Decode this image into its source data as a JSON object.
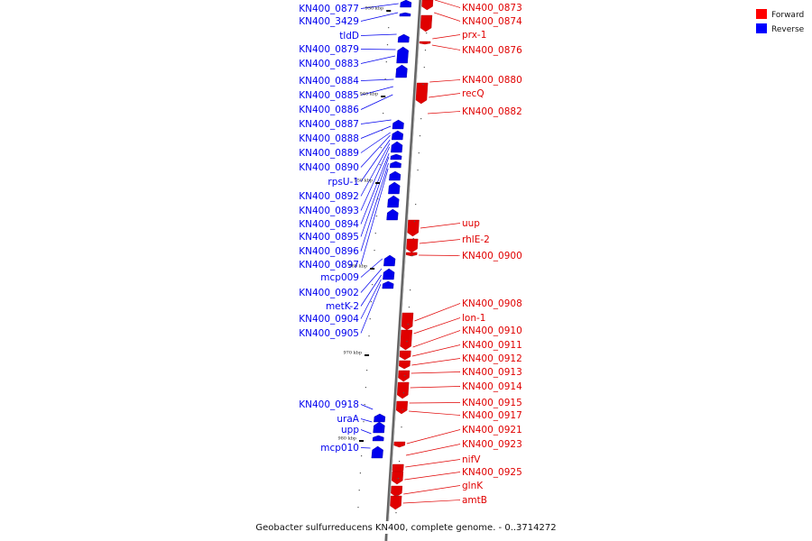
{
  "caption": "Geobacter sulfurreducens KN400, complete genome. - 0..3714272",
  "legend": [
    {
      "label": "Forward",
      "color": "#ff0000"
    },
    {
      "label": "Reverse",
      "color": "#0000ff"
    }
  ],
  "colors": {
    "forward": "#e00000",
    "reverse": "#0000ee",
    "axis": "#808080"
  },
  "ticks": [
    "930 kbp",
    "940 kbp",
    "950 kbp",
    "960 kbp",
    "970 kbp",
    "980 kbp"
  ],
  "forward_genes": [
    "KN400_0873",
    "KN400_0874",
    "prx-1",
    "KN400_0876",
    "KN400_0880",
    "recQ",
    "KN400_0882",
    "uup",
    "rhlE-2",
    "KN400_0900",
    "KN400_0908",
    "lon-1",
    "KN400_0910",
    "KN400_0911",
    "KN400_0912",
    "KN400_0913",
    "KN400_0914",
    "KN400_0915",
    "KN400_0917",
    "KN400_0921",
    "KN400_0923",
    "nifV",
    "KN400_0925",
    "glnK",
    "amtB"
  ],
  "reverse_genes": [
    "KN400_0877",
    "KN400_3429",
    "tldD",
    "KN400_0879",
    "KN400_0883",
    "KN400_0884",
    "KN400_0885",
    "KN400_0886",
    "KN400_0887",
    "KN400_0888",
    "KN400_0889",
    "KN400_0890",
    "rpsU-1",
    "KN400_0892",
    "KN400_0893",
    "KN400_0894",
    "KN400_0895",
    "KN400_0896",
    "KN400_0897",
    "mcp009",
    "KN400_0902",
    "metK-2",
    "KN400_0904",
    "KN400_0905",
    "KN400_0918",
    "uraA",
    "upp",
    "mcp010"
  ]
}
